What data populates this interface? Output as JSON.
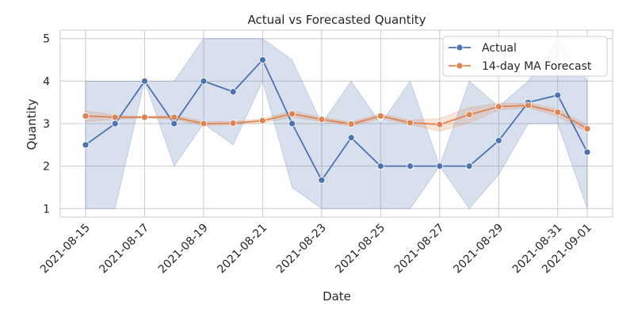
{
  "chart_data": {
    "type": "line",
    "title": "Actual vs Forecasted Quantity",
    "xlabel": "Date",
    "ylabel": "Quantity",
    "x": [
      "2021-08-15",
      "2021-08-16",
      "2021-08-17",
      "2021-08-18",
      "2021-08-19",
      "2021-08-20",
      "2021-08-21",
      "2021-08-22",
      "2021-08-23",
      "2021-08-24",
      "2021-08-25",
      "2021-08-26",
      "2021-08-27",
      "2021-08-28",
      "2021-08-29",
      "2021-08-30",
      "2021-08-31",
      "2021-09-01"
    ],
    "x_ticks": [
      "2021-08-15",
      "2021-08-17",
      "2021-08-19",
      "2021-08-21",
      "2021-08-23",
      "2021-08-25",
      "2021-08-27",
      "2021-08-29",
      "2021-08-31",
      "2021-09-01"
    ],
    "y_ticks": [
      1,
      2,
      3,
      4,
      5
    ],
    "ylim": [
      0.8,
      5.2
    ],
    "grid": true,
    "legend_position": "top-right",
    "series": [
      {
        "name": "Actual",
        "color": "#4c72b0",
        "values": [
          2.5,
          3.0,
          4.0,
          3.0,
          4.0,
          3.75,
          4.5,
          3.0,
          1.67,
          2.67,
          2.0,
          2.0,
          2.0,
          2.0,
          2.6,
          3.5,
          3.67,
          2.33
        ],
        "band_low": [
          1.0,
          1.0,
          4.0,
          2.0,
          3.0,
          2.5,
          4.0,
          1.5,
          1.0,
          1.0,
          1.0,
          1.0,
          2.0,
          1.0,
          1.8,
          3.0,
          3.0,
          1.0
        ],
        "band_high": [
          4.0,
          4.0,
          4.0,
          4.0,
          5.0,
          5.0,
          5.0,
          4.5,
          3.0,
          4.0,
          3.0,
          4.0,
          2.0,
          4.0,
          3.4,
          4.0,
          5.0,
          4.0
        ]
      },
      {
        "name": "14-day MA Forecast",
        "color": "#dd8452",
        "values": [
          3.18,
          3.15,
          3.15,
          3.15,
          3.0,
          3.01,
          3.07,
          3.23,
          3.1,
          2.99,
          3.18,
          3.02,
          2.98,
          3.21,
          3.4,
          3.43,
          3.27,
          2.88
        ],
        "band_low": [
          3.05,
          3.1,
          3.13,
          3.1,
          2.95,
          2.98,
          3.02,
          3.15,
          3.05,
          2.94,
          3.12,
          2.98,
          2.82,
          3.02,
          3.32,
          3.38,
          3.17,
          2.8
        ],
        "band_high": [
          3.3,
          3.2,
          3.17,
          3.2,
          3.05,
          3.05,
          3.12,
          3.3,
          3.15,
          3.04,
          3.24,
          3.08,
          3.12,
          3.38,
          3.48,
          3.48,
          3.35,
          2.96
        ]
      }
    ]
  }
}
